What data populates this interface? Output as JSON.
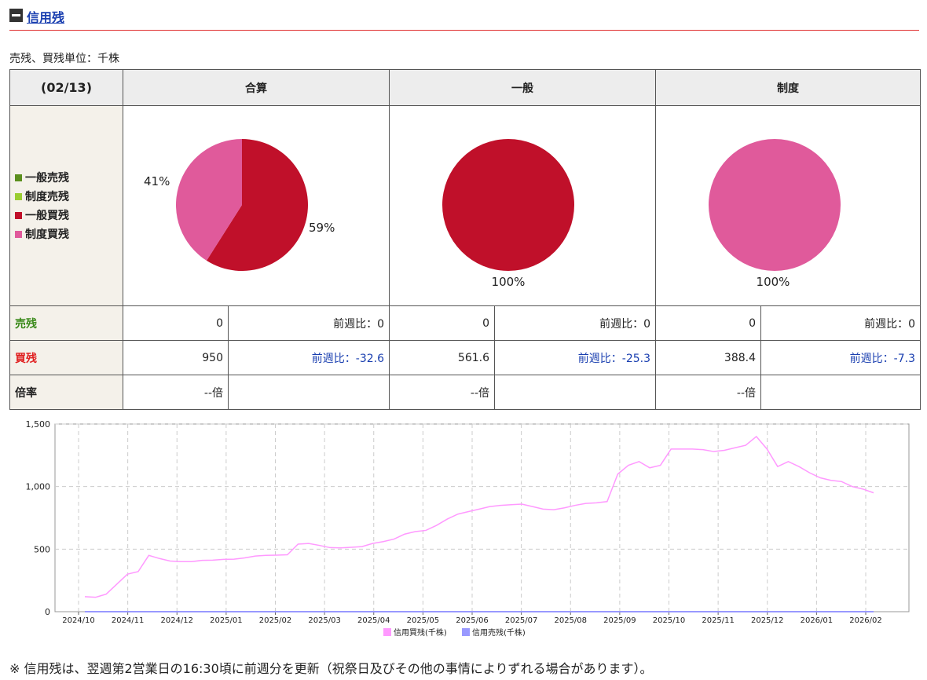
{
  "section": {
    "title": "信用残"
  },
  "unit_label": "売残、買残単位：千株",
  "table": {
    "date": "(02/13)",
    "columns": [
      "合算",
      "一般",
      "制度"
    ],
    "legend": [
      {
        "label": "一般売残",
        "color": "#5b8f1e"
      },
      {
        "label": "制度売残",
        "color": "#9acd32"
      },
      {
        "label": "一般買残",
        "color": "#c0102a"
      },
      {
        "label": "制度買残",
        "color": "#e05a9b"
      }
    ],
    "row_labels": {
      "sell": "売残",
      "buy": "買残",
      "ratio": "倍率"
    },
    "rows": {
      "sell": [
        {
          "value": "0",
          "weekly": "前週比：0"
        },
        {
          "value": "0",
          "weekly": "前週比：0"
        },
        {
          "value": "0",
          "weekly": "前週比：0"
        }
      ],
      "buy": [
        {
          "value": "950",
          "weekly": "前週比：-32.6"
        },
        {
          "value": "561.6",
          "weekly": "前週比：-25.3"
        },
        {
          "value": "388.4",
          "weekly": "前週比：-7.3"
        }
      ],
      "ratio": [
        {
          "value": "--倍",
          "weekly": ""
        },
        {
          "value": "--倍",
          "weekly": ""
        },
        {
          "value": "--倍",
          "weekly": ""
        }
      ]
    }
  },
  "pies": [
    {
      "type": "pie",
      "slices": [
        {
          "label": "59%",
          "value": 59,
          "color": "#c0102a"
        },
        {
          "label": "41%",
          "value": 41,
          "color": "#e05a9b"
        }
      ]
    },
    {
      "type": "pie",
      "slices": [
        {
          "label": "100%",
          "value": 100,
          "color": "#c0102a"
        }
      ]
    },
    {
      "type": "pie",
      "slices": [
        {
          "label": "100%",
          "value": 100,
          "color": "#e05a9b"
        }
      ]
    }
  ],
  "chart_data": {
    "type": "line",
    "ylim": [
      0,
      1500
    ],
    "yticks": [
      "0",
      "500",
      "1,000",
      "1,500"
    ],
    "grid": true,
    "x_labels": [
      "2024/10",
      "2024/11",
      "2024/12",
      "2025/01",
      "2025/02",
      "2025/03",
      "2025/04",
      "2025/05",
      "2025/06",
      "2025/07",
      "2025/08",
      "2025/09",
      "2025/10",
      "2025/11",
      "2025/12",
      "2026/01",
      "2026/02"
    ],
    "series": [
      {
        "name": "信用買残(千株)",
        "color": "#ff99ff",
        "values": [
          120,
          115,
          140,
          220,
          300,
          320,
          450,
          425,
          405,
          400,
          400,
          410,
          412,
          418,
          420,
          430,
          445,
          450,
          452,
          455,
          540,
          545,
          530,
          512,
          510,
          515,
          520,
          545,
          560,
          580,
          620,
          640,
          650,
          690,
          740,
          780,
          800,
          820,
          840,
          850,
          855,
          860,
          840,
          820,
          815,
          830,
          850,
          865,
          870,
          880,
          1100,
          1170,
          1200,
          1150,
          1170,
          1300,
          1300,
          1300,
          1295,
          1280,
          1290,
          1310,
          1330,
          1400,
          1300,
          1160,
          1200,
          1160,
          1110,
          1070,
          1050,
          1040,
          1000,
          980,
          950
        ]
      },
      {
        "name": "信用売残(千株)",
        "color": "#9999ff",
        "values": [
          0,
          0
        ]
      }
    ],
    "legend_position": "bottom"
  },
  "footnote": "※ 信用残は、翌週第2営業日の16:30頃に前週分を更新（祝祭日及びその他の事情によりずれる場合があります）。"
}
